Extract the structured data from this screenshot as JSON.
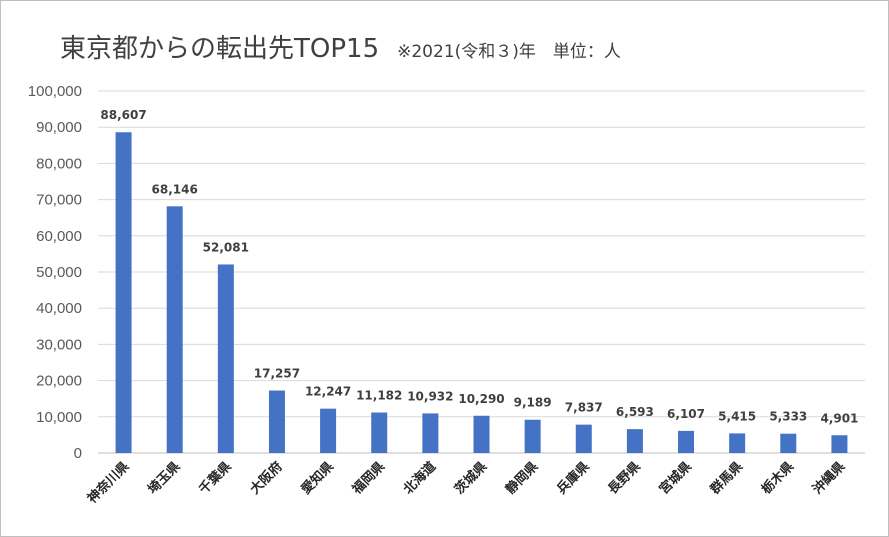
{
  "chart_data": {
    "type": "bar",
    "title": "東京都からの転出先TOP15",
    "subtitle": "※2021(令和３)年　単位：人",
    "categories": [
      "神奈川県",
      "埼玉県",
      "千葉県",
      "大阪府",
      "愛知県",
      "福岡県",
      "北海道",
      "茨城県",
      "静岡県",
      "兵庫県",
      "長野県",
      "宮城県",
      "群馬県",
      "栃木県",
      "沖縄県"
    ],
    "values": [
      88607,
      68146,
      52081,
      17257,
      12247,
      11182,
      10932,
      10290,
      9189,
      7837,
      6593,
      6107,
      5415,
      5333,
      4901
    ],
    "data_labels": [
      "88,607",
      "68,146",
      "52,081",
      "17,257",
      "12,247",
      "11,182",
      "10,932",
      "10,290",
      "9,189",
      "7,837",
      "6,593",
      "6,107",
      "5,415",
      "5,333",
      "4,901"
    ],
    "y_ticks": [
      "0",
      "10,000",
      "20,000",
      "30,000",
      "40,000",
      "50,000",
      "60,000",
      "70,000",
      "80,000",
      "90,000",
      "100,000"
    ],
    "ylim": [
      0,
      100000
    ],
    "grid": true,
    "legend": "none",
    "bar_color": "#4472c4",
    "xlabel": "",
    "ylabel": ""
  }
}
